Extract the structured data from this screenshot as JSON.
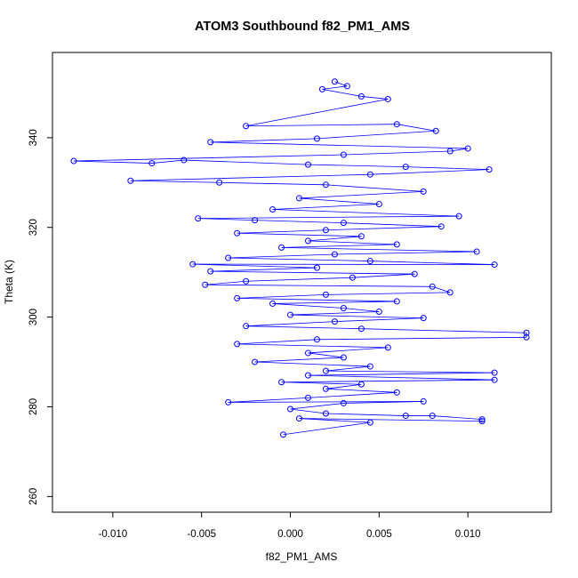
{
  "chart_data": {
    "type": "scatter",
    "title": "ATOM3 Southbound f82_PM1_AMS",
    "xlabel": "f82_PM1_AMS",
    "ylabel": "Theta (K)",
    "xlim": [
      -0.0134,
      0.0147
    ],
    "ylim": [
      256.5,
      359
    ],
    "x_ticks": [
      -0.01,
      -0.005,
      0.0,
      0.005,
      0.01
    ],
    "x_tick_labels": [
      "-0.010",
      "-0.005",
      "0.000",
      "0.005",
      "0.010"
    ],
    "y_ticks": [
      260,
      280,
      300,
      320,
      340
    ],
    "y_tick_labels": [
      "260",
      "280",
      "300",
      "320",
      "340"
    ],
    "series_style": {
      "color": "#0000ff",
      "marker": "open-circle",
      "connected": true
    },
    "legend": "none",
    "grid": false,
    "points": [
      [
        0.0025,
        352.5
      ],
      [
        0.0032,
        351.5
      ],
      [
        0.0018,
        350.8
      ],
      [
        0.004,
        349.2
      ],
      [
        0.0055,
        348.6
      ],
      [
        -0.0025,
        342.6
      ],
      [
        0.006,
        343.0
      ],
      [
        0.0082,
        341.5
      ],
      [
        0.0015,
        339.8
      ],
      [
        -0.0045,
        339.0
      ],
      [
        0.01,
        337.6
      ],
      [
        0.009,
        337.0
      ],
      [
        0.003,
        336.2
      ],
      [
        -0.0122,
        334.8
      ],
      [
        -0.0078,
        334.3
      ],
      [
        -0.006,
        335.0
      ],
      [
        0.001,
        334.0
      ],
      [
        0.0065,
        333.5
      ],
      [
        0.0112,
        332.9
      ],
      [
        0.0045,
        331.8
      ],
      [
        -0.009,
        330.4
      ],
      [
        -0.004,
        330.0
      ],
      [
        0.002,
        329.5
      ],
      [
        0.0075,
        328.0
      ],
      [
        0.0005,
        326.5
      ],
      [
        0.005,
        325.2
      ],
      [
        -0.001,
        324.0
      ],
      [
        0.0095,
        322.5
      ],
      [
        -0.0052,
        322.0
      ],
      [
        -0.002,
        321.6
      ],
      [
        0.003,
        321.0
      ],
      [
        0.0085,
        320.2
      ],
      [
        0.002,
        319.4
      ],
      [
        -0.003,
        318.7
      ],
      [
        0.004,
        318.0
      ],
      [
        0.001,
        317.0
      ],
      [
        0.006,
        316.2
      ],
      [
        -0.0005,
        315.5
      ],
      [
        0.0105,
        314.6
      ],
      [
        0.0025,
        314.0
      ],
      [
        -0.0035,
        313.2
      ],
      [
        0.0045,
        312.5
      ],
      [
        0.0115,
        311.7
      ],
      [
        -0.0055,
        311.8
      ],
      [
        0.0015,
        311.0
      ],
      [
        -0.0045,
        310.2
      ],
      [
        0.007,
        309.6
      ],
      [
        0.0035,
        308.8
      ],
      [
        -0.0025,
        308.0
      ],
      [
        -0.0048,
        307.2
      ],
      [
        0.008,
        306.8
      ],
      [
        0.009,
        305.5
      ],
      [
        0.002,
        305.0
      ],
      [
        -0.003,
        304.2
      ],
      [
        0.006,
        303.5
      ],
      [
        -0.001,
        303.0
      ],
      [
        0.003,
        302.0
      ],
      [
        0.005,
        301.2
      ],
      [
        0.0,
        300.5
      ],
      [
        0.0075,
        299.8
      ],
      [
        0.0025,
        299.0
      ],
      [
        -0.0025,
        298.0
      ],
      [
        0.004,
        297.4
      ],
      [
        0.0133,
        296.5
      ],
      [
        0.0133,
        295.5
      ],
      [
        0.0015,
        295.0
      ],
      [
        -0.003,
        294.0
      ],
      [
        0.0055,
        293.2
      ],
      [
        0.001,
        292.0
      ],
      [
        0.003,
        291.0
      ],
      [
        -0.002,
        290.0
      ],
      [
        0.0045,
        289.0
      ],
      [
        0.002,
        288.0
      ],
      [
        0.0115,
        287.6
      ],
      [
        0.001,
        287.0
      ],
      [
        0.0115,
        286.0
      ],
      [
        -0.0005,
        285.5
      ],
      [
        0.004,
        285.0
      ],
      [
        0.002,
        284.0
      ],
      [
        0.006,
        283.2
      ],
      [
        0.001,
        282.0
      ],
      [
        -0.0035,
        281.0
      ],
      [
        0.0075,
        281.2
      ],
      [
        0.003,
        280.8
      ],
      [
        0.0,
        279.5
      ],
      [
        0.002,
        278.5
      ],
      [
        0.0065,
        278.0
      ],
      [
        0.008,
        278.0
      ],
      [
        0.0108,
        277.2
      ],
      [
        0.0108,
        276.8
      ],
      [
        0.0005,
        277.4
      ],
      [
        0.0045,
        276.5
      ],
      [
        -0.0004,
        273.8
      ]
    ]
  }
}
